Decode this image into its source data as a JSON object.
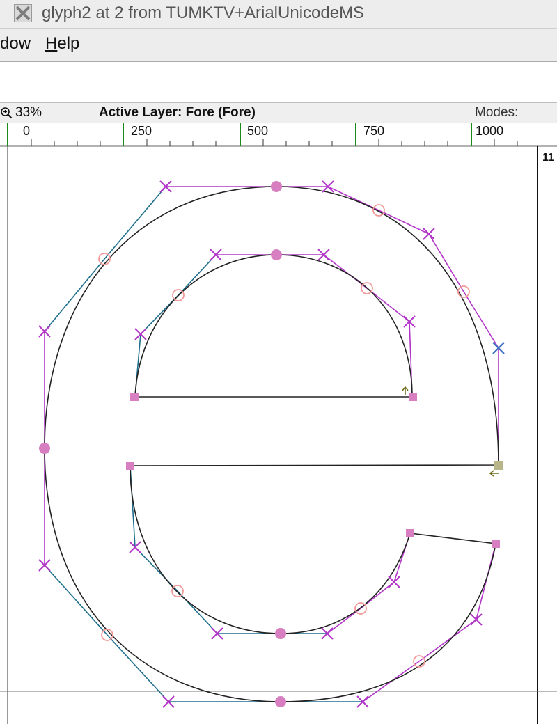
{
  "window": {
    "title": "glyph2 at 2 from TUMKTV+ArialUnicodeMS",
    "icon": "x11-icon"
  },
  "menu": [
    {
      "label": "dow",
      "mnemonic": ""
    },
    {
      "label": "elp",
      "mnemonic": "H"
    }
  ],
  "status": {
    "zoom": "33%",
    "layer": "Active Layer: Fore (Fore)",
    "modes": "Modes:",
    "corner_label": "11"
  },
  "ruler": {
    "ticks": [
      "0",
      "250",
      "500",
      "750",
      "1000"
    ]
  },
  "colors": {
    "guide_green": "#1a8a1a",
    "control_magenta": "#b234c8",
    "control_teal": "#1e6e8c",
    "on_curve_point": "#d77fc1",
    "curve_point_hollow": "#f29a9a",
    "outline": "#222222",
    "start_point": "#b8b688"
  }
}
